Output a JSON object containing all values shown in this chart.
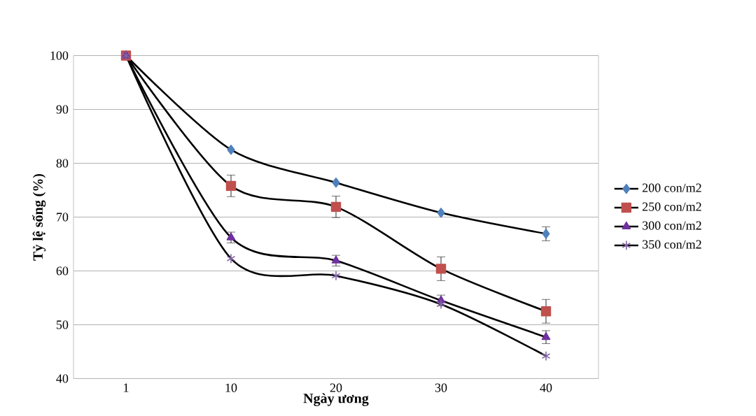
{
  "chart_data": {
    "type": "line",
    "xlabel": "Ngày ương",
    "ylabel": "Tỷ lệ sống (%)",
    "categories": [
      "1",
      "10",
      "20",
      "30",
      "40"
    ],
    "ylim": [
      40,
      100
    ],
    "yticks": [
      40,
      50,
      60,
      70,
      80,
      90,
      100
    ],
    "grid": "y",
    "legend": "right",
    "series": [
      {
        "name": "200 con/m2",
        "color": "#4f81bd",
        "marker": "diamond",
        "values": [
          100,
          82.5,
          76.4,
          70.8,
          66.9
        ],
        "errors": [
          null,
          null,
          null,
          null,
          1.3
        ]
      },
      {
        "name": "250 con/m2",
        "color": "#c0504d",
        "marker": "square",
        "values": [
          100,
          75.8,
          71.9,
          60.4,
          52.5
        ],
        "errors": [
          null,
          2,
          2,
          2.2,
          2.2
        ]
      },
      {
        "name": "300 con/m2",
        "color": "#7030a0",
        "marker": "triangle",
        "values": [
          100,
          66.2,
          61.9,
          54.5,
          47.7
        ],
        "errors": [
          null,
          1,
          1,
          1,
          1.2
        ]
      },
      {
        "name": "350 con/m2",
        "color": "#8064a2",
        "marker": "cross",
        "values": [
          100,
          62.3,
          59.1,
          53.8,
          44.2
        ]
      }
    ]
  }
}
